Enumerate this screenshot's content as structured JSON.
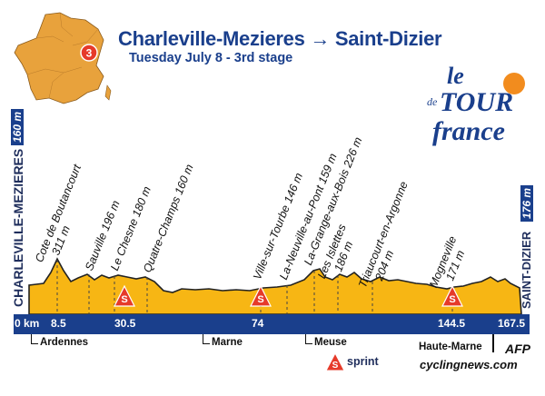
{
  "header": {
    "title": "Charleville-Mezieres → Saint-Dizier",
    "subtitle": "Tuesday July 8 - 3rd stage",
    "stage_number": "3"
  },
  "logo": {
    "text_le": "le",
    "text_de": "de",
    "text_tour": "TOUR",
    "text_france": "france"
  },
  "start": {
    "name": "CHARLEVILLE-MEZIERES",
    "altitude": "160 m"
  },
  "finish": {
    "name": "SAINT-DIZIER",
    "altitude": "176 m"
  },
  "places": [
    {
      "name": "Cote de Boutancourt",
      "alt": "311 m"
    },
    {
      "name": "Sauville",
      "alt": "196 m"
    },
    {
      "name": "Le Chesne",
      "alt": "180 m"
    },
    {
      "name": "Quatre-Champs",
      "alt": "160 m"
    },
    {
      "name": "Ville-sur-Tourbe",
      "alt": "146 m"
    },
    {
      "name": "La-Neuville-au-Pont",
      "alt": "159 m"
    },
    {
      "name": "La-Grange-aux-Bois",
      "alt": "226 m"
    },
    {
      "name": "Les Islettes",
      "alt": "186 m"
    },
    {
      "name": "Triaucourt-en-Argonne",
      "alt": "204 m"
    },
    {
      "name": "Mogneville",
      "alt": "171 m"
    }
  ],
  "km_markers": [
    "0 km",
    "8.5",
    "30.5",
    "74",
    "144.5",
    "167.5"
  ],
  "departments": [
    "Ardennes",
    "Marne",
    "Meuse",
    "Haute-Marne"
  ],
  "legend": {
    "sprint_symbol": "S",
    "sprint_label": "sprint"
  },
  "credits": {
    "agency": "AFP",
    "site": "cyclingnews.com"
  },
  "colors": {
    "profile_fill": "#f7b614",
    "bar": "#1a3f8c",
    "sprint": "#e63a2a"
  }
}
